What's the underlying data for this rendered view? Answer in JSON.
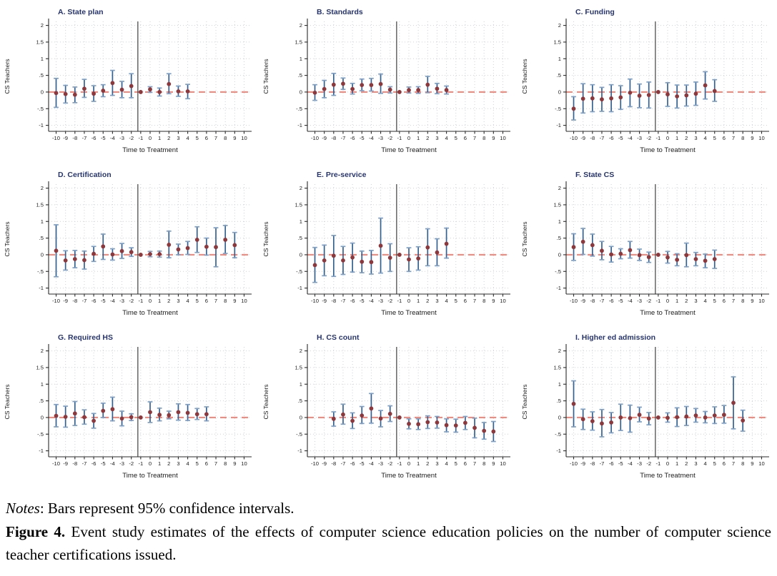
{
  "chart_data": {
    "type": "scatter",
    "description": "3x3 grid of event-study coefficient plots with 95% confidence interval bars",
    "xlabel": "Time to Treatment",
    "ylabel": "CS Teachers",
    "x_ticks": [
      -10,
      -9,
      -8,
      -7,
      -6,
      -5,
      -4,
      -3,
      -2,
      -1,
      0,
      1,
      2,
      3,
      4,
      5,
      6,
      7,
      8,
      9,
      10
    ],
    "y_ticks": [
      2,
      1.5,
      1,
      0.5,
      0,
      -0.5,
      -1
    ],
    "y_tick_labels": [
      "2",
      "1.5",
      "1",
      ".5",
      "0",
      "-.5",
      "-1"
    ],
    "xlim": [
      -10.8,
      10.8
    ],
    "ylim": [
      -1.18,
      2.12
    ],
    "reference_period": -1,
    "zero_line_y": 0,
    "grid": true,
    "points_format": [
      "x",
      "estimate",
      "ci_low",
      "ci_high"
    ],
    "colors": {
      "ci_bar": "#35618f",
      "ci_cap": "#7d9fc6",
      "marker": "#8e383b",
      "zero_line": "#f28b7f",
      "vline": "#404040",
      "panel_title": "#27356e",
      "grid": "#cdd1d6",
      "axis": "#2a2a2a",
      "tick_text": "#1a1a1a"
    },
    "panels": [
      {
        "label": "A. State plan",
        "points": [
          [
            -10,
            -0.03,
            -0.46,
            0.41
          ],
          [
            -9,
            -0.06,
            -0.33,
            0.2
          ],
          [
            -8,
            -0.08,
            -0.32,
            0.15
          ],
          [
            -7,
            0.1,
            -0.16,
            0.38
          ],
          [
            -6,
            -0.05,
            -0.28,
            0.19
          ],
          [
            -5,
            0.04,
            -0.14,
            0.22
          ],
          [
            -4,
            0.27,
            -0.1,
            0.65
          ],
          [
            -3,
            0.07,
            -0.17,
            0.32
          ],
          [
            -2,
            0.18,
            -0.17,
            0.55
          ],
          [
            -1,
            0,
            0,
            0
          ],
          [
            0,
            0.08,
            -0.01,
            0.16
          ],
          [
            1,
            0.0,
            -0.12,
            0.12
          ],
          [
            2,
            0.24,
            -0.05,
            0.55
          ],
          [
            3,
            0.02,
            -0.13,
            0.18
          ],
          [
            4,
            0.02,
            -0.2,
            0.23
          ]
        ]
      },
      {
        "label": "B. Standards",
        "points": [
          [
            -10,
            -0.02,
            -0.25,
            0.22
          ],
          [
            -9,
            0.09,
            -0.17,
            0.35
          ],
          [
            -8,
            0.22,
            -0.1,
            0.56
          ],
          [
            -7,
            0.25,
            0.08,
            0.42
          ],
          [
            -6,
            0.09,
            -0.06,
            0.26
          ],
          [
            -5,
            0.21,
            0.04,
            0.39
          ],
          [
            -4,
            0.21,
            0.03,
            0.41
          ],
          [
            -3,
            0.24,
            -0.04,
            0.54
          ],
          [
            -2,
            0.07,
            -0.03,
            0.16
          ],
          [
            -1,
            0,
            0,
            0
          ],
          [
            0,
            0.06,
            -0.03,
            0.15
          ],
          [
            1,
            0.06,
            -0.04,
            0.16
          ],
          [
            2,
            0.22,
            -0.02,
            0.47
          ],
          [
            3,
            0.1,
            -0.05,
            0.26
          ],
          [
            4,
            0.06,
            -0.06,
            0.18
          ]
        ]
      },
      {
        "label": "C. Funding",
        "points": [
          [
            -10,
            -0.5,
            -0.84,
            -0.14
          ],
          [
            -9,
            -0.2,
            -0.63,
            0.25
          ],
          [
            -8,
            -0.19,
            -0.59,
            0.22
          ],
          [
            -7,
            -0.22,
            -0.58,
            0.14
          ],
          [
            -6,
            -0.19,
            -0.59,
            0.22
          ],
          [
            -5,
            -0.16,
            -0.52,
            0.19
          ],
          [
            -4,
            -0.02,
            -0.44,
            0.39
          ],
          [
            -3,
            -0.11,
            -0.47,
            0.24
          ],
          [
            -2,
            -0.09,
            -0.48,
            0.3
          ],
          [
            -1,
            0,
            0,
            0
          ],
          [
            0,
            -0.07,
            -0.43,
            0.28
          ],
          [
            1,
            -0.13,
            -0.48,
            0.21
          ],
          [
            2,
            -0.1,
            -0.42,
            0.21
          ],
          [
            3,
            -0.05,
            -0.4,
            0.3
          ],
          [
            4,
            0.2,
            -0.21,
            0.61
          ],
          [
            5,
            0.03,
            -0.28,
            0.37
          ]
        ]
      },
      {
        "label": "D. Certification",
        "points": [
          [
            -10,
            0.12,
            -0.66,
            0.9
          ],
          [
            -9,
            -0.17,
            -0.46,
            0.12
          ],
          [
            -8,
            -0.13,
            -0.39,
            0.13
          ],
          [
            -7,
            -0.16,
            -0.43,
            0.11
          ],
          [
            -6,
            0.03,
            -0.2,
            0.25
          ],
          [
            -5,
            0.25,
            -0.14,
            0.62
          ],
          [
            -4,
            0.01,
            -0.16,
            0.18
          ],
          [
            -3,
            0.11,
            -0.11,
            0.34
          ],
          [
            -2,
            0.08,
            -0.05,
            0.21
          ],
          [
            -1,
            0,
            0,
            0
          ],
          [
            0,
            0.02,
            -0.06,
            0.1
          ],
          [
            1,
            0.02,
            -0.07,
            0.11
          ],
          [
            2,
            0.3,
            -0.09,
            0.71
          ],
          [
            3,
            0.16,
            0.0,
            0.32
          ],
          [
            4,
            0.2,
            0.01,
            0.4
          ],
          [
            5,
            0.45,
            0.07,
            0.84
          ],
          [
            6,
            0.24,
            -0.01,
            0.5
          ],
          [
            7,
            0.23,
            -0.36,
            0.81
          ],
          [
            8,
            0.45,
            0.04,
            0.88
          ],
          [
            9,
            0.29,
            -0.09,
            0.67
          ]
        ]
      },
      {
        "label": "E. Pre-service",
        "points": [
          [
            -10,
            -0.31,
            -0.83,
            0.22
          ],
          [
            -9,
            -0.17,
            -0.63,
            0.29
          ],
          [
            -8,
            -0.03,
            -0.65,
            0.58
          ],
          [
            -7,
            -0.17,
            -0.59,
            0.25
          ],
          [
            -6,
            -0.08,
            -0.52,
            0.35
          ],
          [
            -5,
            -0.21,
            -0.54,
            0.11
          ],
          [
            -4,
            -0.22,
            -0.58,
            0.13
          ],
          [
            -3,
            0.27,
            -0.55,
            1.1
          ],
          [
            -2,
            -0.09,
            -0.5,
            0.33
          ],
          [
            -1,
            0,
            0,
            0
          ],
          [
            0,
            -0.14,
            -0.5,
            0.21
          ],
          [
            1,
            -0.11,
            -0.46,
            0.24
          ],
          [
            2,
            0.22,
            -0.33,
            0.78
          ],
          [
            3,
            0.07,
            -0.33,
            0.48
          ],
          [
            4,
            0.33,
            -0.1,
            0.8
          ]
        ]
      },
      {
        "label": "F. State CS",
        "points": [
          [
            -10,
            0.23,
            -0.17,
            0.63
          ],
          [
            -9,
            0.39,
            0.01,
            0.79
          ],
          [
            -8,
            0.29,
            -0.04,
            0.62
          ],
          [
            -7,
            0.12,
            -0.15,
            0.4
          ],
          [
            -6,
            0.01,
            -0.22,
            0.25
          ],
          [
            -5,
            0.03,
            -0.12,
            0.18
          ],
          [
            -4,
            0.14,
            -0.1,
            0.4
          ],
          [
            -3,
            -0.01,
            -0.17,
            0.17
          ],
          [
            -2,
            -0.07,
            -0.23,
            0.08
          ],
          [
            -1,
            0,
            0,
            0
          ],
          [
            0,
            -0.08,
            -0.25,
            0.1
          ],
          [
            1,
            -0.15,
            -0.33,
            0.03
          ],
          [
            2,
            -0.01,
            -0.36,
            0.35
          ],
          [
            3,
            -0.13,
            -0.33,
            0.07
          ],
          [
            4,
            -0.18,
            -0.39,
            0.02
          ],
          [
            5,
            -0.13,
            -0.41,
            0.14
          ]
        ]
      },
      {
        "label": "G. Required HS",
        "points": [
          [
            -10,
            0.05,
            -0.28,
            0.39
          ],
          [
            -9,
            0.02,
            -0.29,
            0.34
          ],
          [
            -8,
            0.12,
            -0.24,
            0.48
          ],
          [
            -7,
            0.01,
            -0.2,
            0.23
          ],
          [
            -6,
            -0.1,
            -0.32,
            0.12
          ],
          [
            -5,
            0.2,
            0.0,
            0.43
          ],
          [
            -4,
            0.25,
            -0.1,
            0.61
          ],
          [
            -3,
            -0.03,
            -0.25,
            0.19
          ],
          [
            -2,
            0.01,
            -0.09,
            0.11
          ],
          [
            -1,
            0,
            0,
            0
          ],
          [
            0,
            0.16,
            -0.15,
            0.47
          ],
          [
            1,
            0.08,
            -0.1,
            0.28
          ],
          [
            2,
            0.07,
            -0.04,
            0.19
          ],
          [
            3,
            0.16,
            -0.08,
            0.41
          ],
          [
            4,
            0.14,
            -0.09,
            0.39
          ],
          [
            5,
            0.1,
            -0.06,
            0.27
          ],
          [
            6,
            0.1,
            -0.1,
            0.32
          ]
        ]
      },
      {
        "label": "H. CS count",
        "points": [
          [
            -8,
            -0.04,
            -0.26,
            0.17
          ],
          [
            -7,
            0.09,
            -0.2,
            0.4
          ],
          [
            -6,
            -0.1,
            -0.33,
            0.14
          ],
          [
            -5,
            0.06,
            -0.18,
            0.33
          ],
          [
            -4,
            0.27,
            -0.17,
            0.72
          ],
          [
            -3,
            -0.03,
            -0.28,
            0.21
          ],
          [
            -2,
            0.11,
            -0.12,
            0.35
          ],
          [
            -1,
            0,
            0,
            0
          ],
          [
            0,
            -0.19,
            -0.34,
            -0.04
          ],
          [
            1,
            -0.2,
            -0.36,
            -0.04
          ],
          [
            2,
            -0.14,
            -0.33,
            0.05
          ],
          [
            3,
            -0.15,
            -0.32,
            0.03
          ],
          [
            4,
            -0.23,
            -0.43,
            -0.04
          ],
          [
            5,
            -0.24,
            -0.44,
            -0.05
          ],
          [
            6,
            -0.16,
            -0.36,
            0.03
          ],
          [
            7,
            -0.31,
            -0.61,
            -0.02
          ],
          [
            8,
            -0.4,
            -0.65,
            -0.15
          ],
          [
            9,
            -0.42,
            -0.72,
            -0.12
          ]
        ]
      },
      {
        "label": "I. Higher ed admission",
        "points": [
          [
            -10,
            0.41,
            -0.28,
            1.1
          ],
          [
            -9,
            -0.05,
            -0.36,
            0.25
          ],
          [
            -8,
            -0.11,
            -0.38,
            0.17
          ],
          [
            -7,
            -0.18,
            -0.58,
            0.24
          ],
          [
            -6,
            -0.15,
            -0.46,
            0.15
          ],
          [
            -5,
            0.0,
            -0.39,
            0.4
          ],
          [
            -4,
            -0.02,
            -0.44,
            0.37
          ],
          [
            -3,
            0.08,
            -0.13,
            0.31
          ],
          [
            -2,
            -0.03,
            -0.22,
            0.15
          ],
          [
            -1,
            0,
            0,
            0
          ],
          [
            0,
            -0.01,
            -0.14,
            0.14
          ],
          [
            1,
            0.01,
            -0.27,
            0.29
          ],
          [
            2,
            0.03,
            -0.24,
            0.33
          ],
          [
            3,
            0.06,
            -0.14,
            0.27
          ],
          [
            4,
            0.0,
            -0.16,
            0.18
          ],
          [
            5,
            0.06,
            -0.18,
            0.32
          ],
          [
            6,
            0.08,
            -0.17,
            0.36
          ],
          [
            7,
            0.44,
            -0.34,
            1.22
          ],
          [
            8,
            -0.09,
            -0.41,
            0.22
          ]
        ]
      }
    ]
  },
  "caption": {
    "notes_label": "Notes",
    "notes_text": ": Bars represent 95% confidence intervals.",
    "figure_label": "Figure 4.",
    "figure_text": " Event study estimates of the effects of computer science education policies on the number of computer science teacher certifications issued."
  }
}
